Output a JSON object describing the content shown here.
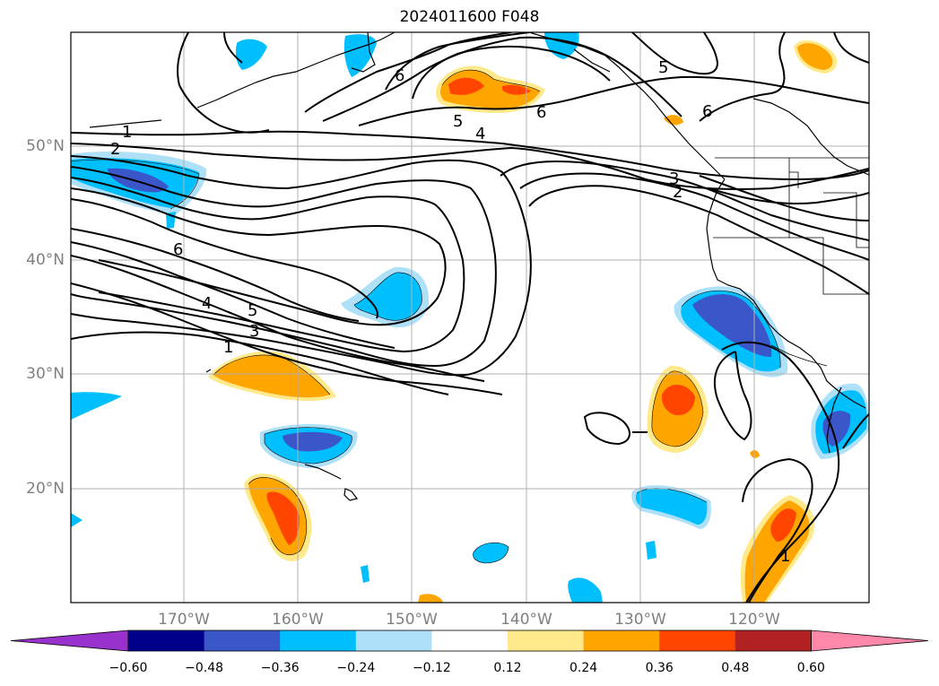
{
  "title": "2024011600 F048",
  "axes": {
    "lat_labels": [
      "50°N",
      "40°N",
      "30°N",
      "20°N"
    ],
    "lon_labels": [
      "170°W",
      "160°W",
      "150°W",
      "140°W",
      "130°W",
      "120°W"
    ]
  },
  "colorbar": {
    "tick_labels": [
      "−0.60",
      "−0.48",
      "−0.36",
      "−0.24",
      "−0.12",
      "0.12",
      "0.24",
      "0.36",
      "0.48",
      "0.60"
    ],
    "colors": [
      "#9932cc",
      "#00008b",
      "#3a56c8",
      "#00bfff",
      "#aee0f8",
      "#ffffff",
      "#ffe98a",
      "#ffa500",
      "#ff4500",
      "#b22222",
      "#ff88aa"
    ]
  },
  "contour_labels": [
    "1",
    "2",
    "3",
    "4",
    "5",
    "6",
    "6",
    "5",
    "4",
    "6",
    "5",
    "3",
    "2",
    "1",
    "1",
    "6"
  ],
  "palette": {
    "neg_light": "#aee0f8",
    "neg_mid": "#00bfff",
    "neg_strong": "#3a56c8",
    "pos_light": "#ffe98a",
    "pos_mid": "#ffa500",
    "pos_strong": "#ff4500",
    "grid": "#b0b0b0",
    "axis_label": "#7f7f7f"
  }
}
